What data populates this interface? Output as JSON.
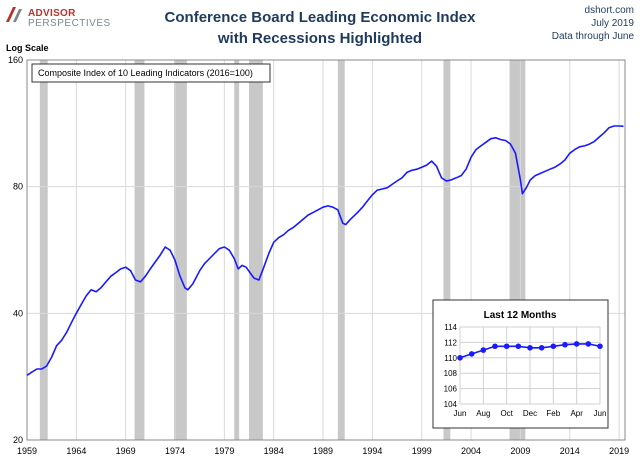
{
  "header": {
    "logo_line1": "ADVISOR",
    "logo_line2": "PERSPECTIVES",
    "title_line1": "Conference Board Leading Economic Index",
    "title_line2": "with Recessions Highlighted",
    "source": "dshort.com",
    "date": "July 2019",
    "note": "Data through June"
  },
  "colors": {
    "line": "#1a1aff",
    "recession": "#c8c8c8",
    "title": "#1f3a5c",
    "brand_red": "#b5332a"
  },
  "chart_data": [
    {
      "type": "line",
      "title": "Conference Board Leading Economic Index with Recessions Highlighted",
      "ylabel": "Log Scale",
      "yscale": "log",
      "ylim": [
        20,
        160
      ],
      "yticks": [
        20,
        40,
        80,
        160
      ],
      "xlim": [
        1959,
        2019.6
      ],
      "xticks": [
        "1959",
        "1964",
        "1969",
        "1974",
        "1979",
        "1984",
        "1989",
        "1994",
        "1999",
        "2004",
        "2009",
        "2014",
        "2019"
      ],
      "legend": "Composite Index of 10 Leading Indicators (2016=100)",
      "legend_placement": "top-left",
      "recessions": [
        [
          1960.3,
          1961.1
        ],
        [
          1969.9,
          1970.9
        ],
        [
          1973.9,
          1975.2
        ],
        [
          1980.0,
          1980.5
        ],
        [
          1981.5,
          1982.9
        ],
        [
          1990.5,
          1991.2
        ],
        [
          2001.2,
          2001.9
        ],
        [
          2007.9,
          2009.5
        ]
      ],
      "series": [
        {
          "x": [
            1959.0,
            1959.5,
            1960.0,
            1960.5,
            1961.0,
            1961.5,
            1962.0,
            1962.5,
            1963.0,
            1963.5,
            1964.0,
            1964.5,
            1965.0,
            1965.5,
            1966.0,
            1966.5,
            1967.0,
            1967.5,
            1968.0,
            1968.5,
            1969.0,
            1969.5,
            1970.0,
            1970.5,
            1971.0,
            1971.5,
            1972.0,
            1972.5,
            1973.0,
            1973.5,
            1974.0,
            1974.5,
            1975.0,
            1975.3,
            1975.8,
            1976.5,
            1977.0,
            1977.5,
            1978.0,
            1978.5,
            1979.0,
            1979.5,
            1980.0,
            1980.4,
            1980.8,
            1981.2,
            1981.6,
            1982.0,
            1982.5,
            1983.0,
            1983.5,
            1984.0,
            1984.5,
            1985.0,
            1985.5,
            1986.0,
            1986.5,
            1987.0,
            1987.5,
            1988.0,
            1988.5,
            1989.0,
            1989.5,
            1990.0,
            1990.5,
            1991.0,
            1991.3,
            1991.8,
            1992.5,
            1993.0,
            1993.5,
            1994.0,
            1994.5,
            1995.0,
            1995.5,
            1996.0,
            1996.5,
            1997.0,
            1997.5,
            1998.0,
            1998.5,
            1999.0,
            1999.5,
            2000.0,
            2000.5,
            2001.0,
            2001.5,
            2002.0,
            2002.5,
            2003.0,
            2003.5,
            2004.0,
            2004.5,
            2005.0,
            2005.5,
            2006.0,
            2006.5,
            2007.0,
            2007.5,
            2008.0,
            2008.5,
            2009.0,
            2009.2,
            2009.6,
            2010.0,
            2010.5,
            2011.0,
            2011.5,
            2012.0,
            2012.5,
            2013.0,
            2013.5,
            2014.0,
            2014.5,
            2015.0,
            2015.5,
            2016.0,
            2016.5,
            2017.0,
            2017.5,
            2018.0,
            2018.5,
            2019.0,
            2019.45
          ],
          "values": [
            28.5,
            29.0,
            29.5,
            29.5,
            30.0,
            31.5,
            33.5,
            34.5,
            36.0,
            38.0,
            40.0,
            42.0,
            44.0,
            45.5,
            45.0,
            46.0,
            47.5,
            49.0,
            50.0,
            51.0,
            51.5,
            50.5,
            48.0,
            47.5,
            49.0,
            51.0,
            53.0,
            55.0,
            57.5,
            56.5,
            53.5,
            49.0,
            46.0,
            45.5,
            47.0,
            50.5,
            52.5,
            54.0,
            55.5,
            57.0,
            57.5,
            56.5,
            54.0,
            51.0,
            52.0,
            51.5,
            50.0,
            48.5,
            48.0,
            51.5,
            55.5,
            59.0,
            60.5,
            61.5,
            63.0,
            64.0,
            65.5,
            67.0,
            68.5,
            69.5,
            70.5,
            71.5,
            72.0,
            71.5,
            70.5,
            65.5,
            65.0,
            67.0,
            69.5,
            71.5,
            74.0,
            76.5,
            78.5,
            79.0,
            79.5,
            81.0,
            82.5,
            84.0,
            86.5,
            87.5,
            88.0,
            89.0,
            90.0,
            92.0,
            89.5,
            84.0,
            82.5,
            83.0,
            84.0,
            85.0,
            88.0,
            94.0,
            98.0,
            100.0,
            102.0,
            104.0,
            104.5,
            103.5,
            103.0,
            101.0,
            96.0,
            83.0,
            77.0,
            79.5,
            83.0,
            85.0,
            86.0,
            87.0,
            88.0,
            89.0,
            90.5,
            92.5,
            96.0,
            98.0,
            99.5,
            100.0,
            101.0,
            102.5,
            105.0,
            107.5,
            110.5,
            111.5,
            111.5,
            111.3
          ]
        }
      ]
    },
    {
      "type": "line",
      "title": "Last 12 Months",
      "categories": [
        "Jun",
        "Jul",
        "Aug",
        "Sep",
        "Oct",
        "Nov",
        "Dec",
        "Jan",
        "Feb",
        "Mar",
        "Apr",
        "May",
        "Jun"
      ],
      "xticks": [
        "Jun",
        "Aug",
        "Oct",
        "Dec",
        "Feb",
        "Apr",
        "Jun"
      ],
      "ylim": [
        104,
        114
      ],
      "yticks": [
        104,
        106,
        108,
        110,
        112,
        114
      ],
      "grid": true,
      "series": [
        {
          "values": [
            110.0,
            110.5,
            111.0,
            111.5,
            111.5,
            111.5,
            111.3,
            111.3,
            111.5,
            111.7,
            111.8,
            111.8,
            111.5
          ]
        }
      ]
    }
  ]
}
